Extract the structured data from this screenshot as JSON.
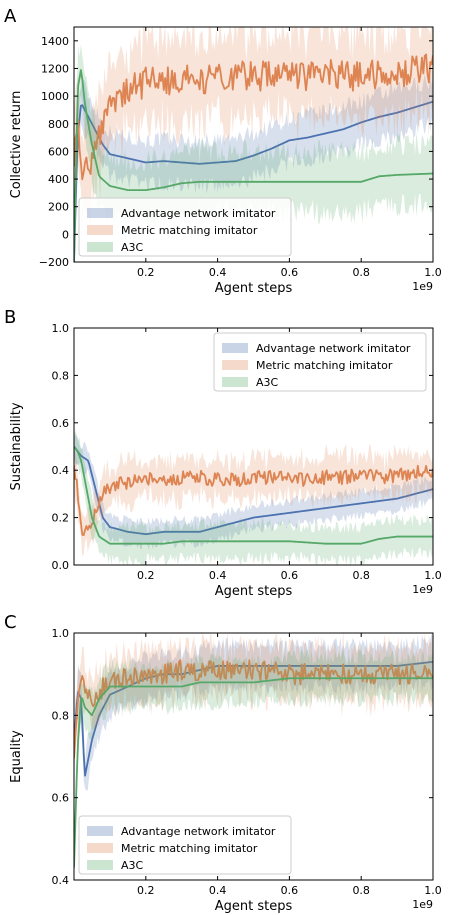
{
  "colors": {
    "blue": "#4c72b0",
    "orange": "#dd8452",
    "green": "#55a868"
  },
  "chart_data": [
    {
      "type": "line",
      "panel": "A",
      "xlabel": "Agent steps",
      "ylabel": "Collective return",
      "x_multiplier": "1e9",
      "xlim": [
        0,
        1.0
      ],
      "ylim": [
        -200,
        1500
      ],
      "xticks": [
        "0.2",
        "0.4",
        "0.6",
        "0.8",
        "1.0"
      ],
      "yticks": [
        "−200",
        "0",
        "200",
        "400",
        "600",
        "800",
        "1000",
        "1200",
        "1400"
      ],
      "legend_loc": "lower-left",
      "series": [
        {
          "name": "Advantage network imitator",
          "color": "blue",
          "x": [
            0,
            0.01,
            0.02,
            0.04,
            0.06,
            0.08,
            0.1,
            0.15,
            0.2,
            0.25,
            0.3,
            0.35,
            0.4,
            0.45,
            0.5,
            0.55,
            0.6,
            0.65,
            0.7,
            0.75,
            0.8,
            0.85,
            0.9,
            0.95,
            1.0
          ],
          "y": [
            -200,
            700,
            950,
            850,
            750,
            650,
            580,
            550,
            520,
            530,
            520,
            510,
            520,
            530,
            570,
            620,
            680,
            700,
            730,
            760,
            810,
            850,
            880,
            920,
            960
          ],
          "band": 160
        },
        {
          "name": "Metric matching imitator",
          "color": "orange",
          "x": [
            0,
            0.01,
            0.02,
            0.04,
            0.06,
            0.08,
            0.1,
            0.15,
            0.2,
            0.25,
            0.3,
            0.35,
            0.4,
            0.45,
            0.5,
            0.55,
            0.6,
            0.65,
            0.7,
            0.75,
            0.8,
            0.85,
            0.9,
            0.95,
            1.0
          ],
          "y": [
            600,
            800,
            400,
            500,
            650,
            800,
            950,
            1050,
            1100,
            1100,
            1120,
            1130,
            1120,
            1150,
            1140,
            1150,
            1160,
            1140,
            1160,
            1150,
            1140,
            1160,
            1170,
            1180,
            1200
          ],
          "band": 300,
          "noise": 110
        },
        {
          "name": "A3C",
          "color": "green",
          "x": [
            0,
            0.01,
            0.02,
            0.03,
            0.05,
            0.07,
            0.1,
            0.15,
            0.2,
            0.25,
            0.3,
            0.35,
            0.4,
            0.5,
            0.6,
            0.7,
            0.8,
            0.85,
            0.9,
            1.0
          ],
          "y": [
            -200,
            1050,
            1200,
            950,
            650,
            420,
            350,
            320,
            320,
            340,
            370,
            380,
            380,
            380,
            380,
            380,
            380,
            420,
            430,
            440
          ],
          "band": 220
        }
      ]
    },
    {
      "type": "line",
      "panel": "B",
      "xlabel": "Agent steps",
      "ylabel": "Sustainability",
      "x_multiplier": "1e9",
      "xlim": [
        0,
        1.0
      ],
      "ylim": [
        0,
        1.0
      ],
      "xticks": [
        "0.2",
        "0.4",
        "0.6",
        "0.8",
        "1.0"
      ],
      "yticks": [
        "0.0",
        "0.2",
        "0.4",
        "0.6",
        "0.8",
        "1.0"
      ],
      "legend_loc": "upper-right",
      "series": [
        {
          "name": "Advantage network imitator",
          "color": "blue",
          "x": [
            0,
            0.01,
            0.02,
            0.04,
            0.06,
            0.08,
            0.1,
            0.15,
            0.2,
            0.25,
            0.3,
            0.35,
            0.4,
            0.45,
            0.5,
            0.55,
            0.6,
            0.65,
            0.7,
            0.75,
            0.8,
            0.85,
            0.9,
            0.95,
            1.0
          ],
          "y": [
            0.5,
            0.48,
            0.46,
            0.44,
            0.32,
            0.2,
            0.16,
            0.14,
            0.13,
            0.14,
            0.14,
            0.14,
            0.16,
            0.18,
            0.2,
            0.21,
            0.22,
            0.23,
            0.24,
            0.25,
            0.26,
            0.27,
            0.28,
            0.3,
            0.32
          ],
          "band": 0.05
        },
        {
          "name": "Metric matching imitator",
          "color": "orange",
          "x": [
            0,
            0.01,
            0.02,
            0.03,
            0.05,
            0.07,
            0.09,
            0.12,
            0.15,
            0.2,
            0.25,
            0.3,
            0.35,
            0.4,
            0.45,
            0.5,
            0.55,
            0.6,
            0.65,
            0.7,
            0.75,
            0.8,
            0.85,
            0.9,
            0.95,
            1.0
          ],
          "y": [
            0.45,
            0.3,
            0.15,
            0.14,
            0.18,
            0.26,
            0.32,
            0.34,
            0.35,
            0.36,
            0.36,
            0.37,
            0.37,
            0.36,
            0.36,
            0.37,
            0.37,
            0.36,
            0.36,
            0.37,
            0.37,
            0.38,
            0.37,
            0.38,
            0.39,
            0.4
          ],
          "band": 0.08,
          "noise": 0.03
        },
        {
          "name": "A3C",
          "color": "green",
          "x": [
            0,
            0.01,
            0.02,
            0.03,
            0.05,
            0.07,
            0.1,
            0.15,
            0.2,
            0.25,
            0.3,
            0.35,
            0.4,
            0.5,
            0.6,
            0.7,
            0.8,
            0.85,
            0.9,
            1.0
          ],
          "y": [
            0.5,
            0.48,
            0.44,
            0.36,
            0.2,
            0.12,
            0.09,
            0.09,
            0.09,
            0.09,
            0.1,
            0.1,
            0.1,
            0.1,
            0.1,
            0.09,
            0.09,
            0.11,
            0.12,
            0.12
          ],
          "band": 0.07
        }
      ]
    },
    {
      "type": "line",
      "panel": "C",
      "xlabel": "Agent steps",
      "ylabel": "Equality",
      "x_multiplier": "1e9",
      "xlim": [
        0,
        1.0
      ],
      "ylim": [
        0.4,
        1.0
      ],
      "xticks": [
        "0.2",
        "0.4",
        "0.6",
        "0.8",
        "1.0"
      ],
      "yticks": [
        "0.4",
        "0.6",
        "0.8",
        "1.0"
      ],
      "legend_loc": "lower-left",
      "series": [
        {
          "name": "Advantage network imitator",
          "color": "blue",
          "x": [
            0,
            0.01,
            0.02,
            0.03,
            0.05,
            0.07,
            0.1,
            0.15,
            0.2,
            0.25,
            0.3,
            0.35,
            0.4,
            0.5,
            0.6,
            0.7,
            0.8,
            0.9,
            1.0
          ],
          "y": [
            0.72,
            0.86,
            0.84,
            0.65,
            0.74,
            0.8,
            0.85,
            0.87,
            0.89,
            0.9,
            0.9,
            0.91,
            0.92,
            0.92,
            0.92,
            0.92,
            0.92,
            0.92,
            0.93
          ],
          "band": 0.05
        },
        {
          "name": "Metric matching imitator",
          "color": "orange",
          "x": [
            0,
            0.01,
            0.02,
            0.03,
            0.05,
            0.07,
            0.1,
            0.15,
            0.2,
            0.25,
            0.3,
            0.35,
            0.4,
            0.5,
            0.6,
            0.7,
            0.8,
            0.9,
            1.0
          ],
          "y": [
            0.72,
            0.82,
            0.88,
            0.86,
            0.84,
            0.86,
            0.88,
            0.89,
            0.9,
            0.9,
            0.91,
            0.91,
            0.91,
            0.91,
            0.9,
            0.9,
            0.9,
            0.9,
            0.9
          ],
          "band": 0.06,
          "noise": 0.025
        },
        {
          "name": "A3C",
          "color": "green",
          "x": [
            0,
            0.01,
            0.02,
            0.03,
            0.05,
            0.07,
            0.1,
            0.15,
            0.2,
            0.25,
            0.3,
            0.35,
            0.4,
            0.5,
            0.6,
            0.7,
            0.8,
            0.9,
            1.0
          ],
          "y": [
            0.43,
            0.72,
            0.85,
            0.82,
            0.8,
            0.84,
            0.87,
            0.87,
            0.87,
            0.87,
            0.87,
            0.88,
            0.88,
            0.88,
            0.89,
            0.89,
            0.89,
            0.89,
            0.89
          ],
          "band": 0.05
        }
      ]
    }
  ]
}
